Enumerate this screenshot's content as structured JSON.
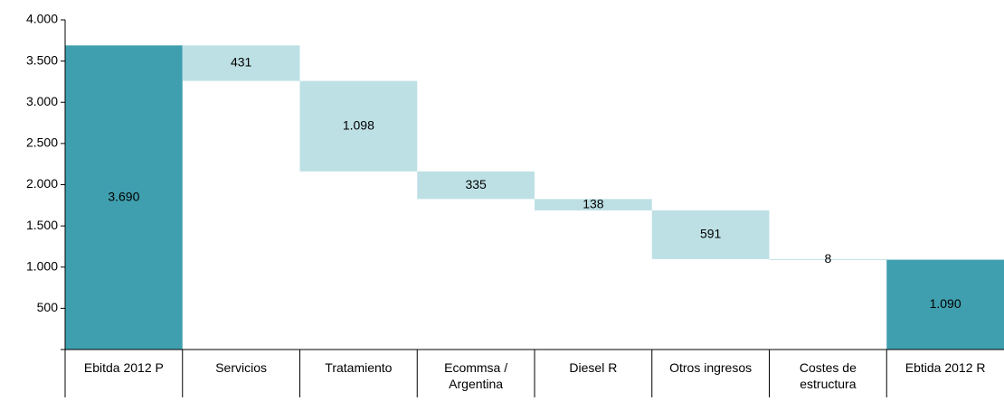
{
  "chart_data": {
    "type": "waterfall",
    "categories": [
      "Ebitda 2012 P",
      "Servicios",
      "Tratamiento",
      "Ecommsa / Argentina",
      "Diesel R",
      "Otros ingresos",
      "Costes de estructura",
      "Ebtida 2012 R"
    ],
    "values": [
      3690,
      431,
      1098,
      335,
      138,
      591,
      8,
      1090
    ],
    "value_labels": [
      "3.690",
      "431",
      "1.098",
      "335",
      "138",
      "591",
      "8",
      "1.090"
    ],
    "measures": [
      "total",
      "decrease",
      "decrease",
      "decrease",
      "decrease",
      "decrease",
      "decrease",
      "total"
    ],
    "colors": {
      "total": "#3f9faf",
      "decrease": "#bde0e5"
    },
    "ylim": [
      0,
      4000
    ],
    "yticks": [
      500,
      {
        "value": 1000,
        "label": "1.000"
      },
      {
        "value": 1500,
        "label": "1.500"
      },
      {
        "value": 2000,
        "label": "2.000"
      },
      {
        "value": 2500,
        "label": "2.500"
      },
      {
        "value": 3000,
        "label": "3.000"
      },
      {
        "value": 3500,
        "label": "3.500"
      },
      {
        "value": 4000,
        "label": "4.000"
      }
    ],
    "grid": false
  }
}
